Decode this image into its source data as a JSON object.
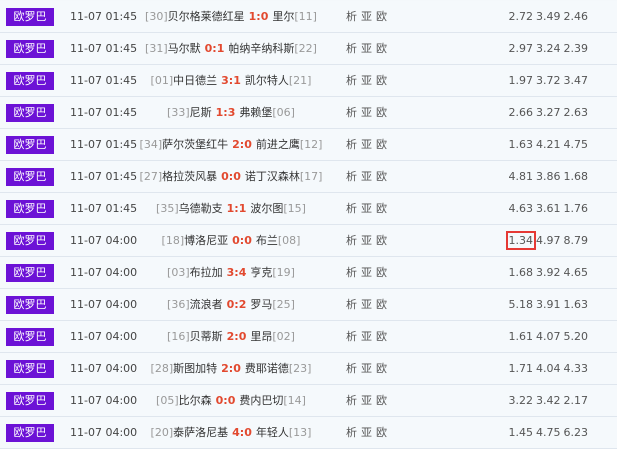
{
  "matches": [
    {
      "league": "欧罗巴",
      "time": "11-07 01:45",
      "home_rank": "[30]",
      "home": "贝尔格莱德红星",
      "score": "1:0",
      "away": "里尔",
      "away_rank": "[11]",
      "odds": [
        "2.72",
        "3.49",
        "2.46"
      ]
    },
    {
      "league": "欧罗巴",
      "time": "11-07 01:45",
      "home_rank": "[31]",
      "home": "马尔默",
      "score": "0:1",
      "away": "帕纳辛纳科斯",
      "away_rank": "[22]",
      "odds": [
        "2.97",
        "3.24",
        "2.39"
      ]
    },
    {
      "league": "欧罗巴",
      "time": "11-07 01:45",
      "home_rank": "[01]",
      "home": "中日德兰",
      "score": "3:1",
      "away": "凯尔特人",
      "away_rank": "[21]",
      "odds": [
        "1.97",
        "3.72",
        "3.47"
      ]
    },
    {
      "league": "欧罗巴",
      "time": "11-07 01:45",
      "home_rank": "[33]",
      "home": "尼斯",
      "score": "1:3",
      "away": "弗赖堡",
      "away_rank": "[06]",
      "odds": [
        "2.66",
        "3.27",
        "2.63"
      ]
    },
    {
      "league": "欧罗巴",
      "time": "11-07 01:45",
      "home_rank": "[34]",
      "home": "萨尔茨堡红牛",
      "score": "2:0",
      "away": "前进之鹰",
      "away_rank": "[12]",
      "odds": [
        "1.63",
        "4.21",
        "4.75"
      ]
    },
    {
      "league": "欧罗巴",
      "time": "11-07 01:45",
      "home_rank": "[27]",
      "home": "格拉茨风暴",
      "score": "0:0",
      "away": "诺丁汉森林",
      "away_rank": "[17]",
      "odds": [
        "4.81",
        "3.86",
        "1.68"
      ]
    },
    {
      "league": "欧罗巴",
      "time": "11-07 01:45",
      "home_rank": "[35]",
      "home": "乌德勒支",
      "score": "1:1",
      "away": "波尔图",
      "away_rank": "[15]",
      "odds": [
        "4.63",
        "3.61",
        "1.76"
      ]
    },
    {
      "league": "欧罗巴",
      "time": "11-07 04:00",
      "home_rank": "[18]",
      "home": "博洛尼亚",
      "score": "0:0",
      "away": "布兰",
      "away_rank": "[08]",
      "odds": [
        "1.34",
        "4.97",
        "8.79"
      ],
      "highlight": true
    },
    {
      "league": "欧罗巴",
      "time": "11-07 04:00",
      "home_rank": "[03]",
      "home": "布拉加",
      "score": "3:4",
      "away": "亨克",
      "away_rank": "[19]",
      "odds": [
        "1.68",
        "3.92",
        "4.65"
      ]
    },
    {
      "league": "欧罗巴",
      "time": "11-07 04:00",
      "home_rank": "[36]",
      "home": "流浪者",
      "score": "0:2",
      "away": "罗马",
      "away_rank": "[25]",
      "odds": [
        "5.18",
        "3.91",
        "1.63"
      ]
    },
    {
      "league": "欧罗巴",
      "time": "11-07 04:00",
      "home_rank": "[16]",
      "home": "贝蒂斯",
      "score": "2:0",
      "away": "里昂",
      "away_rank": "[02]",
      "odds": [
        "1.61",
        "4.07",
        "5.20"
      ]
    },
    {
      "league": "欧罗巴",
      "time": "11-07 04:00",
      "home_rank": "[28]",
      "home": "斯图加特",
      "score": "2:0",
      "away": "费耶诺德",
      "away_rank": "[23]",
      "odds": [
        "1.71",
        "4.04",
        "4.33"
      ]
    },
    {
      "league": "欧罗巴",
      "time": "11-07 04:00",
      "home_rank": "[05]",
      "home": "比尔森",
      "score": "0:0",
      "away": "费内巴切",
      "away_rank": "[14]",
      "odds": [
        "3.22",
        "3.42",
        "2.17"
      ]
    },
    {
      "league": "欧罗巴",
      "time": "11-07 04:00",
      "home_rank": "[20]",
      "home": "泰萨洛尼基",
      "score": "4:0",
      "away": "年轻人",
      "away_rank": "[13]",
      "odds": [
        "1.45",
        "4.75",
        "6.23"
      ]
    }
  ],
  "links": {
    "analysis": "析",
    "asian": "亚",
    "euro": "欧"
  },
  "colors": {
    "badge": "#6c12d6",
    "score": "#e2492f",
    "highlight": "#e53935"
  }
}
